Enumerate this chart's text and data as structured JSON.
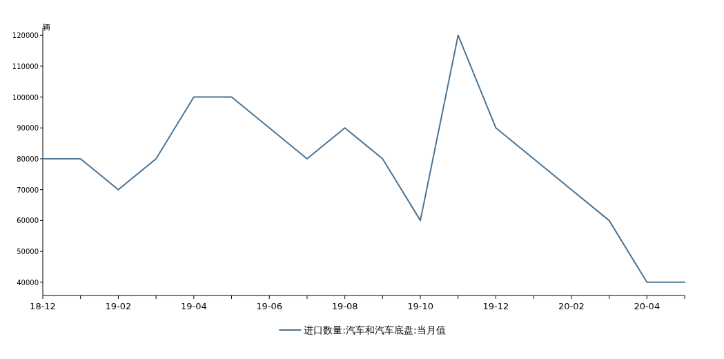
{
  "chart_data": {
    "type": "line",
    "ylabel": "辆",
    "legend": "bottom",
    "categories": [
      "18-12",
      null,
      "19-02",
      null,
      "19-04",
      null,
      "19-06",
      null,
      "19-08",
      null,
      "19-10",
      null,
      "19-12",
      null,
      "20-02",
      null,
      "20-04",
      null
    ],
    "series": [
      {
        "name": "进口数量:汽车和汽车底盘:当月值",
        "color": "#4a7394",
        "values": [
          80000,
          80000,
          70000,
          80000,
          100000,
          100000,
          90000,
          80000,
          90000,
          80000,
          60000,
          120000,
          90000,
          80000,
          70000,
          60000,
          40000,
          40000
        ]
      }
    ],
    "ylim": [
      35700,
      122500
    ],
    "yticks": [
      40000,
      50000,
      60000,
      70000,
      80000,
      90000,
      100000,
      110000,
      120000
    ]
  }
}
